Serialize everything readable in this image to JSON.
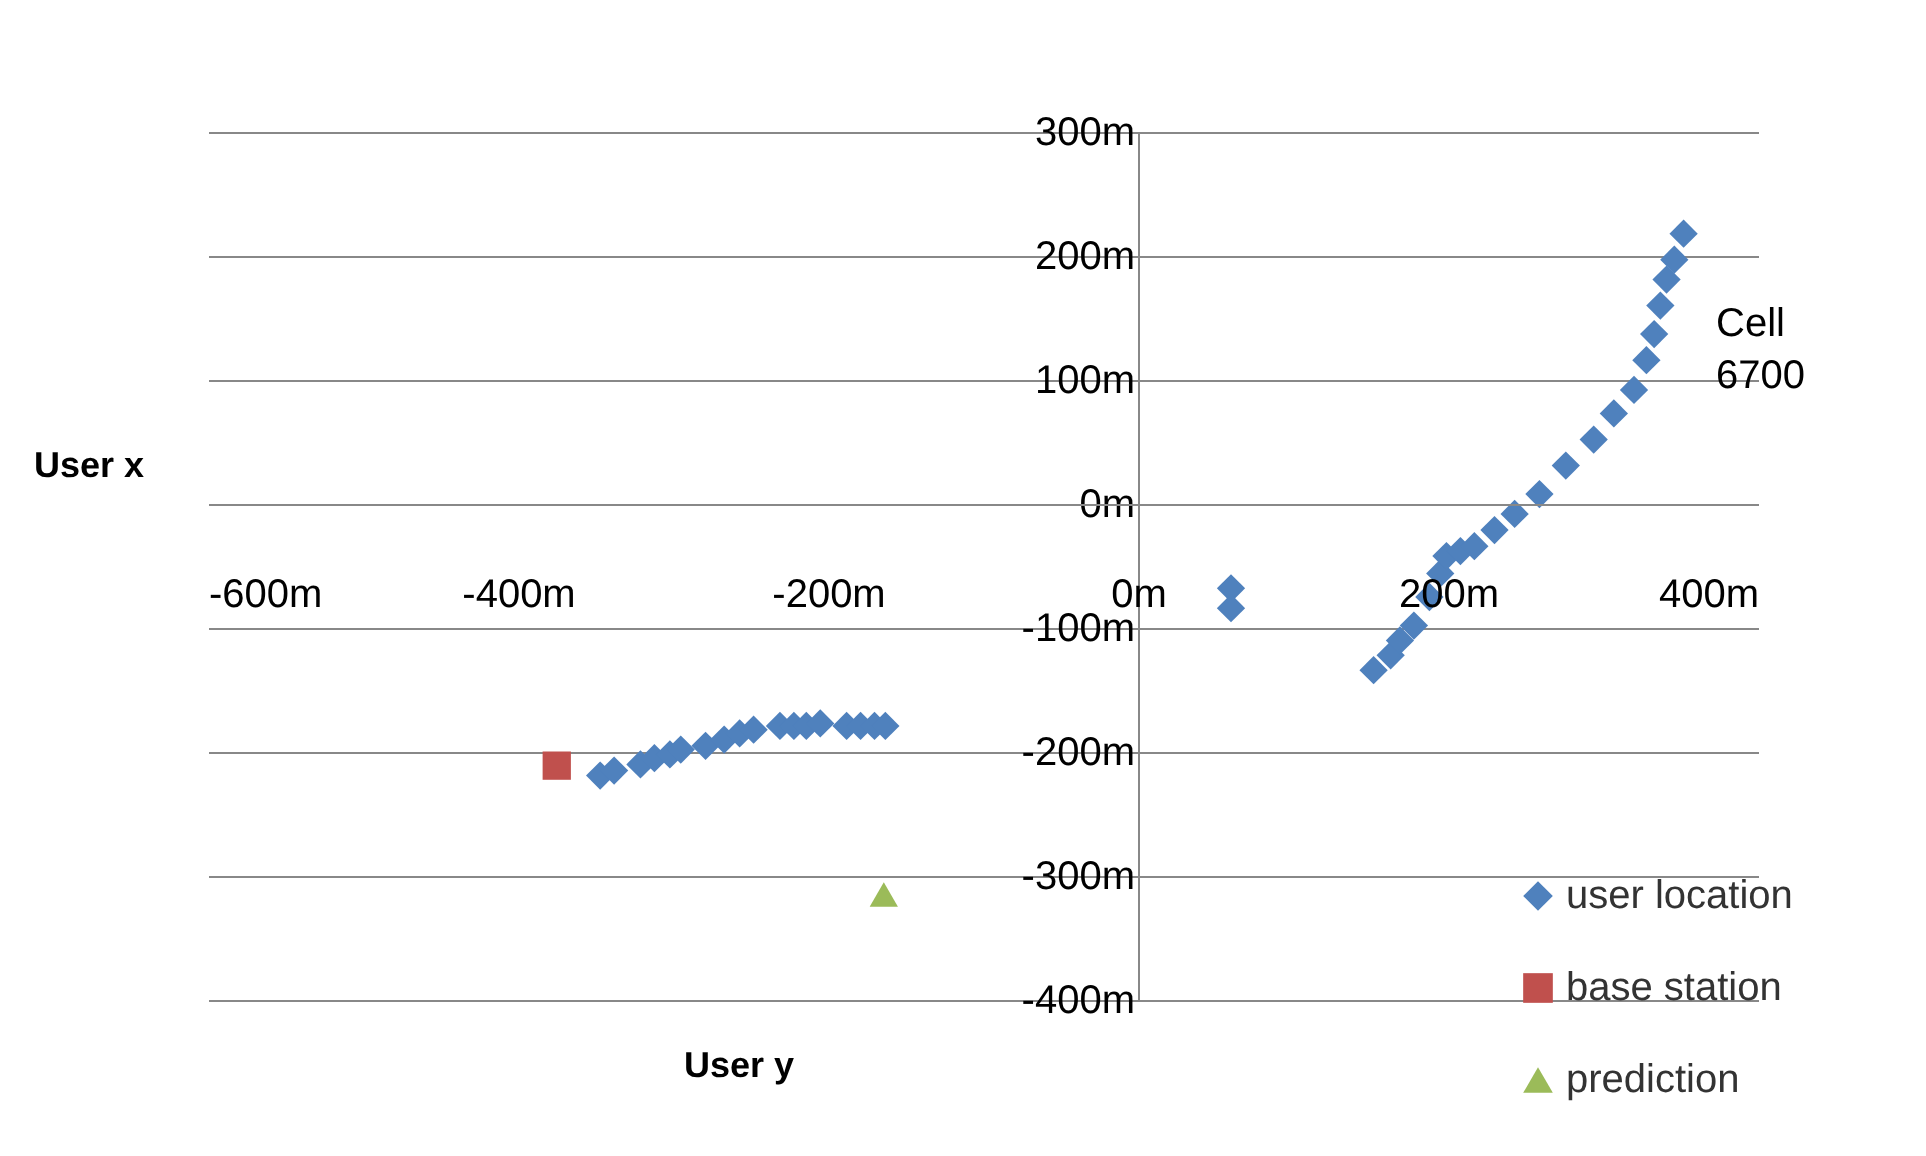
{
  "chart_data": {
    "type": "scatter",
    "xlabel": "User y",
    "ylabel": "User x",
    "xlim": [
      -600,
      400
    ],
    "ylim": [
      -400,
      300
    ],
    "xticks": [
      {
        "value": -600,
        "label": "-600m"
      },
      {
        "value": -400,
        "label": "-400m"
      },
      {
        "value": -200,
        "label": "-200m"
      },
      {
        "value": 0,
        "label": "0m"
      },
      {
        "value": 200,
        "label": "200m"
      },
      {
        "value": 400,
        "label": "400m"
      }
    ],
    "yticks": [
      {
        "value": -400,
        "label": "-400m"
      },
      {
        "value": -300,
        "label": "-300m"
      },
      {
        "value": -200,
        "label": "-200m"
      },
      {
        "value": -100,
        "label": "-100m"
      },
      {
        "value": 0,
        "label": "0m"
      },
      {
        "value": 100,
        "label": "100m"
      },
      {
        "value": 200,
        "label": "200m"
      },
      {
        "value": 300,
        "label": "300m"
      }
    ],
    "grid": "y",
    "legend": "bottom right",
    "series": [
      {
        "name": "user location",
        "color": "#4f81bd",
        "marker": "diamond",
        "x": [
          -347,
          -338,
          -321,
          -312,
          -302,
          -295,
          -279,
          -267,
          -257,
          -248,
          -231,
          -222,
          -214,
          -205,
          -188,
          -179,
          -170,
          -163,
          60,
          60,
          152,
          163,
          169,
          178,
          188,
          195,
          199,
          208,
          217,
          230,
          243,
          259,
          276,
          294,
          307,
          320,
          328,
          333,
          337,
          341,
          346,
          352
        ],
        "values": [
          -219,
          -215,
          -210,
          -205,
          -202,
          -198,
          -195,
          -190,
          -185,
          -182,
          -179,
          -179,
          -179,
          -177,
          -179,
          -179,
          -179,
          -179,
          -68,
          -84,
          -134,
          -122,
          -110,
          -98,
          -75,
          -56,
          -42,
          -38,
          -34,
          -21,
          -8,
          8,
          31,
          52,
          73,
          92,
          116,
          137,
          160,
          181,
          197,
          218
        ]
      },
      {
        "name": "base station",
        "color": "#c0504d",
        "marker": "square",
        "x": [
          -375
        ],
        "values": [
          -211
        ]
      },
      {
        "name": "prediction",
        "color": "#9bbb59",
        "marker": "triangle",
        "x": [
          -164
        ],
        "values": [
          -315
        ]
      }
    ],
    "annotations": [
      "Cell 6700"
    ]
  }
}
